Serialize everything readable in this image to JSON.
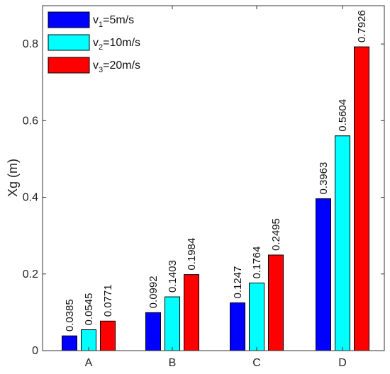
{
  "chart_data": {
    "type": "bar",
    "categories": [
      "A",
      "B",
      "C",
      "D"
    ],
    "series": [
      {
        "name": "v1=5m/s",
        "name_parts": [
          "v",
          "1",
          "=5m/s"
        ],
        "color": "#0000ff",
        "values": [
          0.0385,
          0.0992,
          0.1247,
          0.3963
        ]
      },
      {
        "name": "v2=10m/s",
        "name_parts": [
          "v",
          "2",
          "=10m/s"
        ],
        "color": "#00ffff",
        "values": [
          0.0545,
          0.1403,
          0.1764,
          0.5604
        ]
      },
      {
        "name": "v3=20m/s",
        "name_parts": [
          "v",
          "3",
          "=20m/s"
        ],
        "color": "#ff0000",
        "values": [
          0.0771,
          0.1984,
          0.2495,
          0.7926
        ]
      }
    ],
    "data_labels": [
      [
        "0.0385",
        "0.0992",
        "0.1247",
        "0.3963"
      ],
      [
        "0.0545",
        "0.1403",
        "0.1764",
        "0.5604"
      ],
      [
        "0.0771",
        "0.1984",
        "0.2495",
        "0.7926"
      ]
    ],
    "xlabel": "",
    "ylabel": "Xg (m)",
    "ylim": [
      0,
      0.9
    ],
    "yticks": [
      0,
      0.2,
      0.4,
      0.6,
      0.8
    ],
    "ytick_labels": [
      "0",
      "0.2",
      "0.4",
      "0.6",
      "0.8"
    ],
    "grid": false,
    "legend_position": "top-left"
  }
}
